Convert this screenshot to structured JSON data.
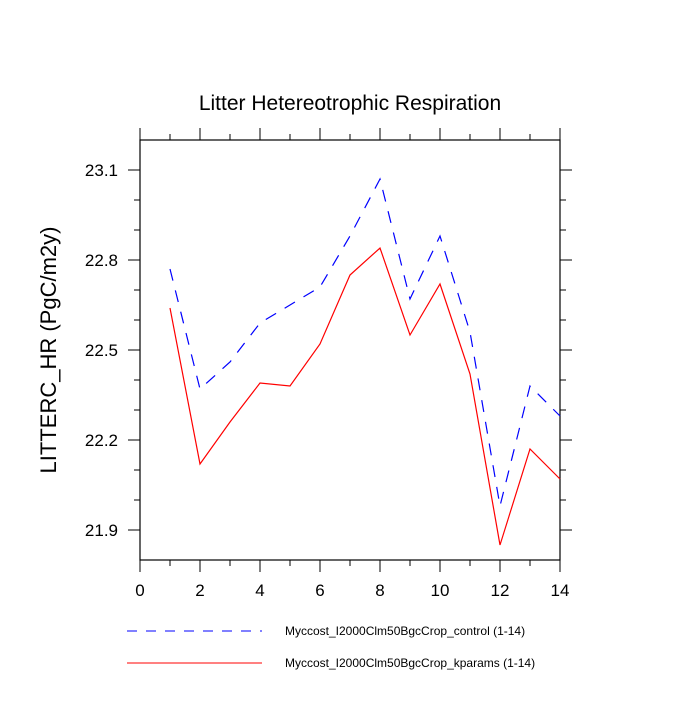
{
  "chart_data": {
    "type": "line",
    "title": "Litter Hetereotrophic Respiration",
    "xlabel": "",
    "ylabel": "LITTERC_HR  (PgC/m2y)",
    "xlim": [
      0,
      14
    ],
    "ylim": [
      21.8,
      23.2
    ],
    "x_ticks": [
      0,
      2,
      4,
      6,
      8,
      10,
      12,
      14
    ],
    "x_tick_labels": [
      "0",
      "2",
      "4",
      "6",
      "8",
      "10",
      "12",
      "14"
    ],
    "y_ticks": [
      21.9,
      22.2,
      22.5,
      22.8,
      23.1
    ],
    "y_tick_labels": [
      "21.9",
      "22.2",
      "22.5",
      "22.8",
      "23.1"
    ],
    "grid": false,
    "legend_position": "bottom",
    "x": [
      1,
      2,
      3,
      4,
      5,
      6,
      7,
      8,
      9,
      10,
      11,
      12,
      13,
      14
    ],
    "series": [
      {
        "name": "Myccost_I2000Clm50BgcCrop_control (1-14)",
        "color": "#0000ff",
        "dash": "dashed",
        "values": [
          22.77,
          22.37,
          22.46,
          22.59,
          22.65,
          22.71,
          22.88,
          23.07,
          22.67,
          22.88,
          22.56,
          21.98,
          22.38,
          22.28
        ]
      },
      {
        "name": "Myccost_I2000Clm50BgcCrop_kparams (1-14)",
        "color": "#ff0000",
        "dash": "solid",
        "values": [
          22.64,
          22.12,
          22.26,
          22.39,
          22.38,
          22.52,
          22.75,
          22.84,
          22.55,
          22.72,
          22.42,
          21.85,
          22.17,
          22.07
        ]
      }
    ]
  }
}
